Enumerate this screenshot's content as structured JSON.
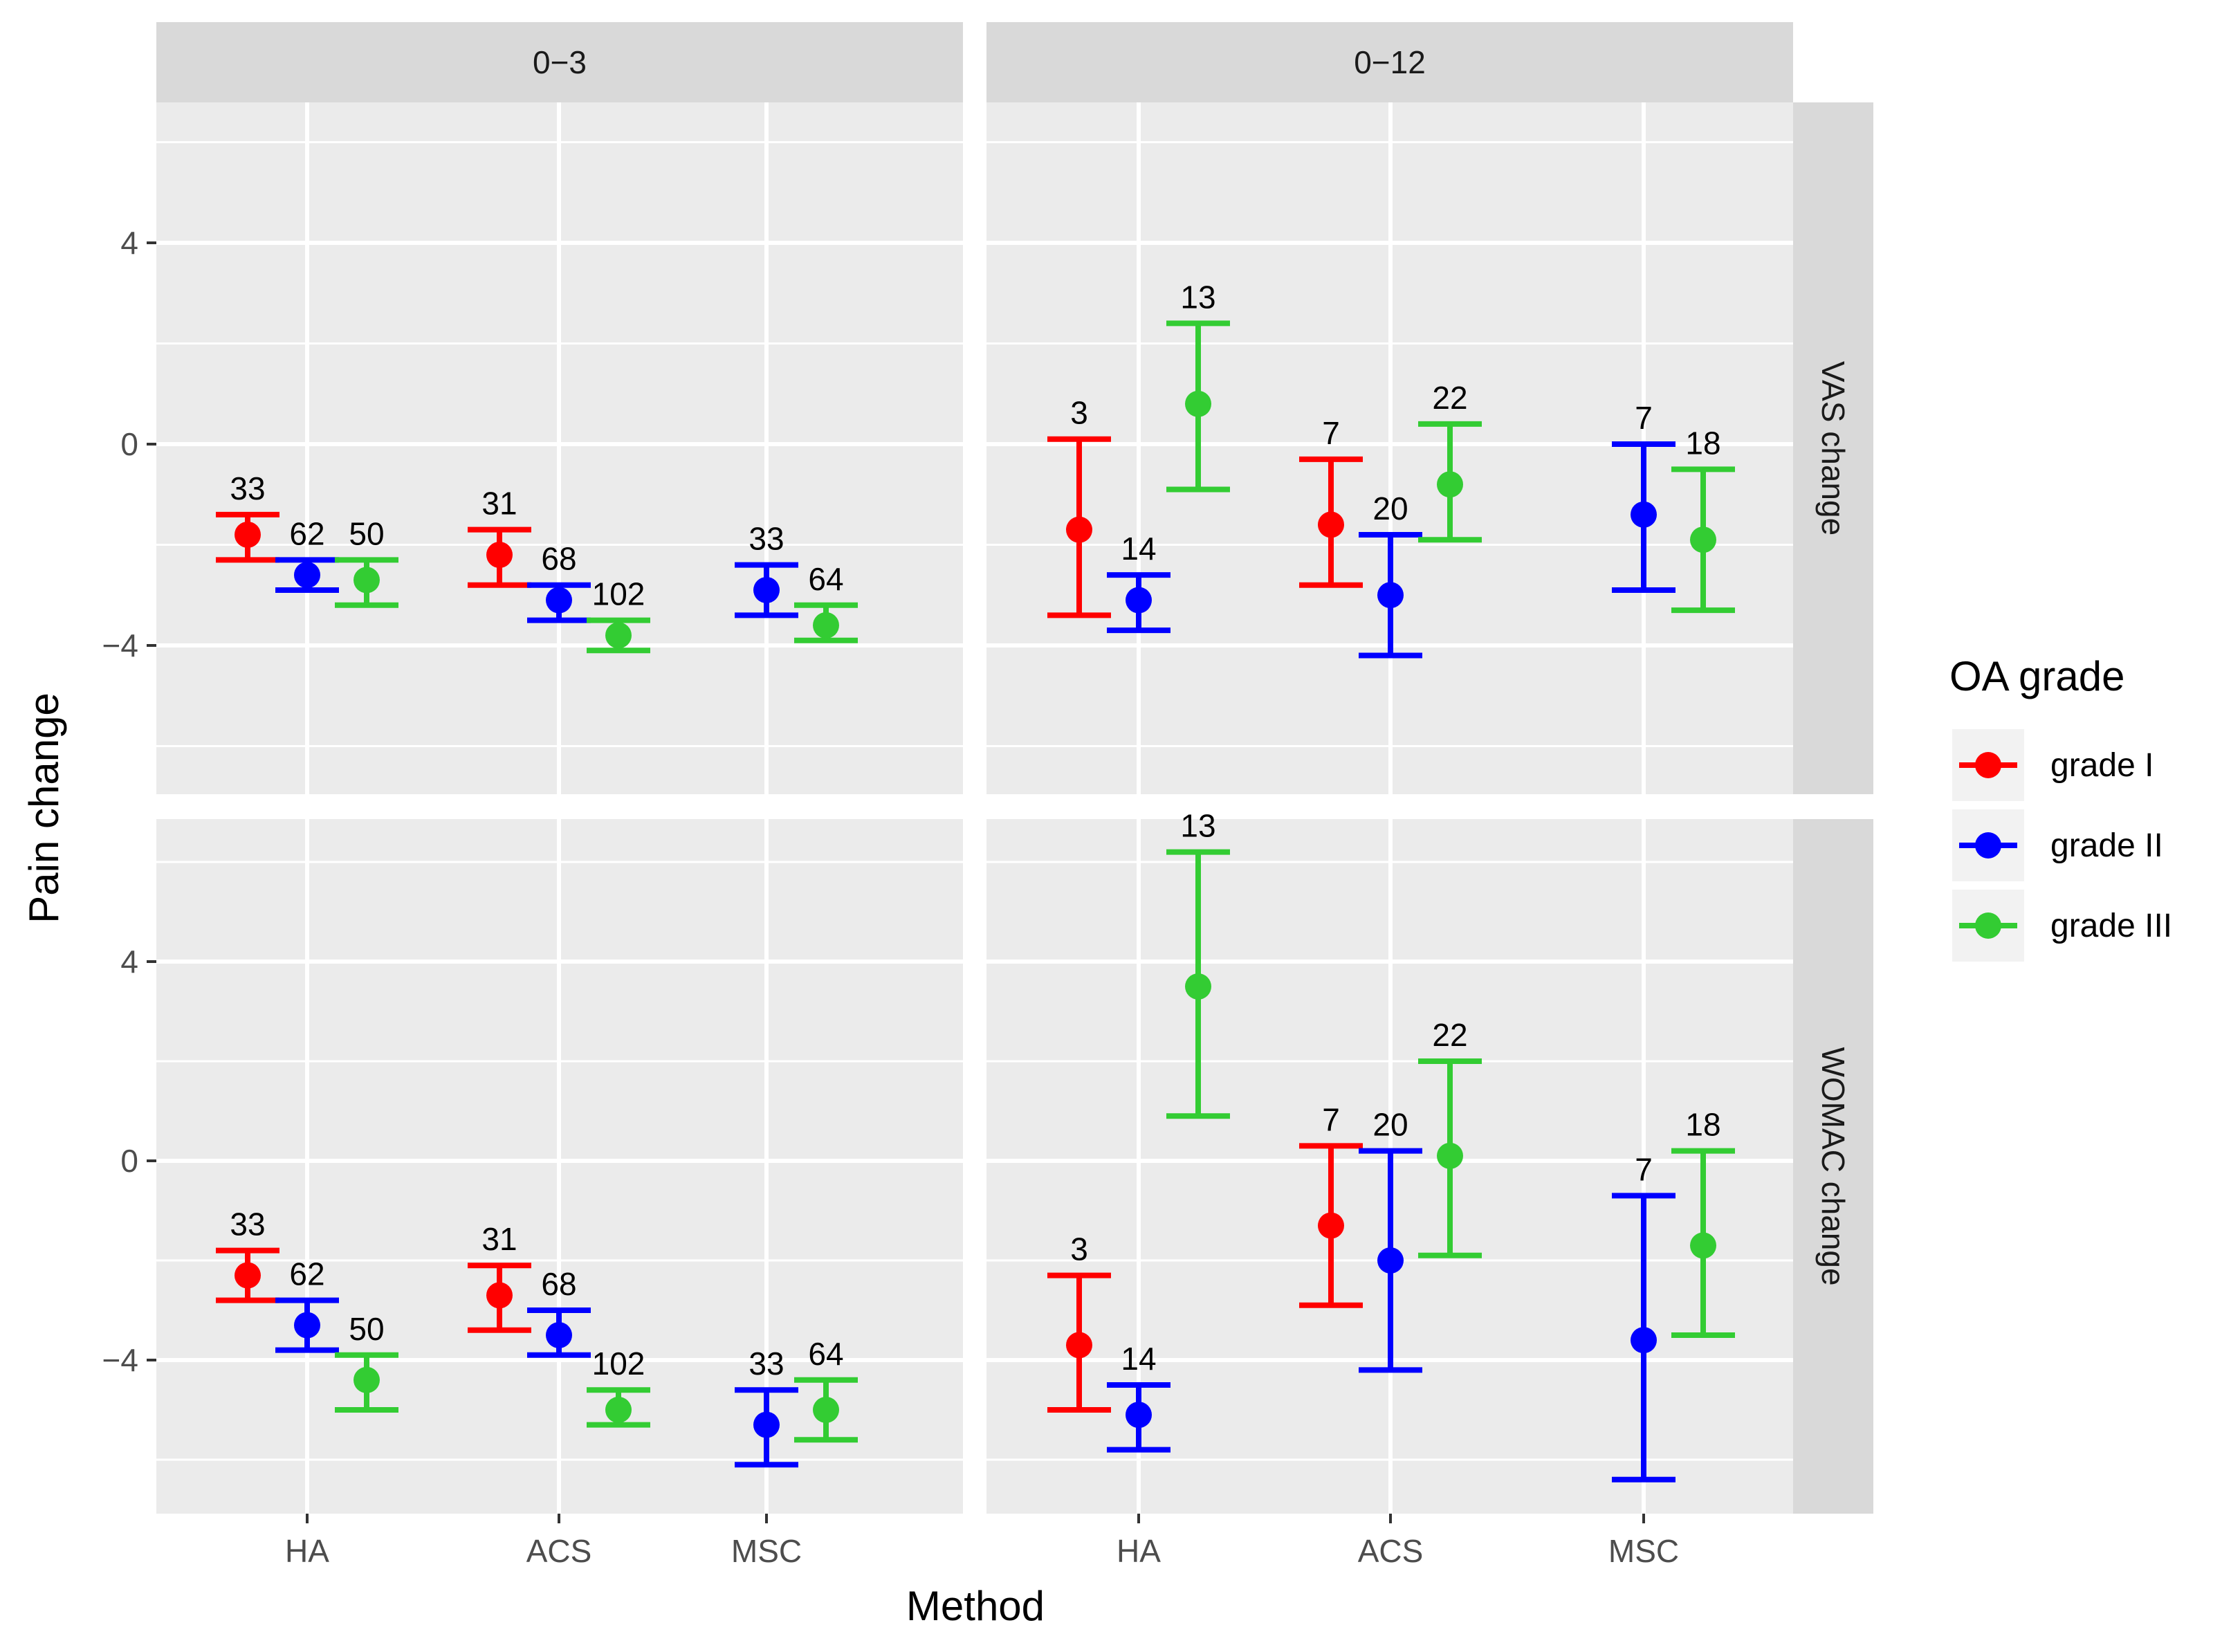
{
  "chart_data": {
    "type": "errorbar-faceted",
    "xlabel": "Method",
    "ylabel": "Pain change",
    "categories": [
      "HA",
      "ACS",
      "MSC"
    ],
    "column_facets": [
      "0−3",
      "0−12"
    ],
    "row_facets": [
      "VAS change",
      "WOMAC change"
    ],
    "y_ticks": [
      -4,
      0,
      4
    ],
    "y_tick_labels": [
      "−4",
      "0",
      "4"
    ],
    "ylim": [
      -7,
      7
    ],
    "grid": true,
    "legend": {
      "title": "OA grade",
      "position": "right",
      "items": [
        {
          "name": "grade I",
          "color": "#ff0000"
        },
        {
          "name": "grade II",
          "color": "#0000ff"
        },
        {
          "name": "grade III",
          "color": "#33cc33"
        }
      ]
    },
    "panels": [
      {
        "column": "0−3",
        "row": "VAS change",
        "series": [
          {
            "grade": "grade I",
            "points": [
              {
                "method": "HA",
                "mean": -1.8,
                "lower": -2.3,
                "upper": -1.4,
                "n": "33"
              },
              {
                "method": "ACS",
                "mean": -2.2,
                "lower": -2.8,
                "upper": -1.7,
                "n": "31"
              }
            ]
          },
          {
            "grade": "grade II",
            "points": [
              {
                "method": "HA",
                "mean": -2.6,
                "lower": -2.9,
                "upper": -2.3,
                "n": "62"
              },
              {
                "method": "ACS",
                "mean": -3.1,
                "lower": -3.5,
                "upper": -2.8,
                "n": "68"
              },
              {
                "method": "MSC",
                "mean": -2.9,
                "lower": -3.4,
                "upper": -2.4,
                "n": "33"
              }
            ]
          },
          {
            "grade": "grade III",
            "points": [
              {
                "method": "HA",
                "mean": -2.7,
                "lower": -3.2,
                "upper": -2.3,
                "n": "50"
              },
              {
                "method": "ACS",
                "mean": -3.8,
                "lower": -4.1,
                "upper": -3.5,
                "n": "102"
              },
              {
                "method": "MSC",
                "mean": -3.6,
                "lower": -3.9,
                "upper": -3.2,
                "n": "64"
              }
            ]
          }
        ]
      },
      {
        "column": "0−12",
        "row": "VAS change",
        "series": [
          {
            "grade": "grade I",
            "points": [
              {
                "method": "HA",
                "mean": -1.7,
                "lower": -3.4,
                "upper": 0.1,
                "n": "3"
              },
              {
                "method": "ACS",
                "mean": -1.6,
                "lower": -2.8,
                "upper": -0.3,
                "n": "7"
              }
            ]
          },
          {
            "grade": "grade II",
            "points": [
              {
                "method": "HA",
                "mean": -3.1,
                "lower": -3.7,
                "upper": -2.6,
                "n": "14"
              },
              {
                "method": "ACS",
                "mean": -3.0,
                "lower": -4.2,
                "upper": -1.8,
                "n": "20"
              },
              {
                "method": "MSC",
                "mean": -1.4,
                "lower": -2.9,
                "upper": 0.0,
                "n": "7"
              }
            ]
          },
          {
            "grade": "grade III",
            "points": [
              {
                "method": "HA",
                "mean": 0.8,
                "lower": -0.9,
                "upper": 2.4,
                "n": "13"
              },
              {
                "method": "ACS",
                "mean": -0.8,
                "lower": -1.9,
                "upper": 0.4,
                "n": "22"
              },
              {
                "method": "MSC",
                "mean": -1.9,
                "lower": -3.3,
                "upper": -0.5,
                "n": "18"
              }
            ]
          }
        ]
      },
      {
        "column": "0−3",
        "row": "WOMAC change",
        "series": [
          {
            "grade": "grade I",
            "points": [
              {
                "method": "HA",
                "mean": -2.3,
                "lower": -2.8,
                "upper": -1.8,
                "n": "33"
              },
              {
                "method": "ACS",
                "mean": -2.7,
                "lower": -3.4,
                "upper": -2.1,
                "n": "31"
              }
            ]
          },
          {
            "grade": "grade II",
            "points": [
              {
                "method": "HA",
                "mean": -3.3,
                "lower": -3.8,
                "upper": -2.8,
                "n": "62"
              },
              {
                "method": "ACS",
                "mean": -3.5,
                "lower": -3.9,
                "upper": -3.0,
                "n": "68"
              },
              {
                "method": "MSC",
                "mean": -5.3,
                "lower": -6.1,
                "upper": -4.6,
                "n": "33"
              }
            ]
          },
          {
            "grade": "grade III",
            "points": [
              {
                "method": "HA",
                "mean": -4.4,
                "lower": -5.0,
                "upper": -3.9,
                "n": "50"
              },
              {
                "method": "ACS",
                "mean": -5.0,
                "lower": -5.3,
                "upper": -4.6,
                "n": "102"
              },
              {
                "method": "MSC",
                "mean": -5.0,
                "lower": -5.6,
                "upper": -4.4,
                "n": "64"
              }
            ]
          }
        ]
      },
      {
        "column": "0−12",
        "row": "WOMAC change",
        "series": [
          {
            "grade": "grade I",
            "points": [
              {
                "method": "HA",
                "mean": -3.7,
                "lower": -5.0,
                "upper": -2.3,
                "n": "3"
              },
              {
                "method": "ACS",
                "mean": -1.3,
                "lower": -2.9,
                "upper": 0.3,
                "n": "7"
              }
            ]
          },
          {
            "grade": "grade II",
            "points": [
              {
                "method": "HA",
                "mean": -5.1,
                "lower": -5.8,
                "upper": -4.5,
                "n": "14"
              },
              {
                "method": "ACS",
                "mean": -2.0,
                "lower": -4.2,
                "upper": 0.2,
                "n": "20"
              },
              {
                "method": "MSC",
                "mean": -3.6,
                "lower": -6.4,
                "upper": -0.7,
                "n": "7"
              }
            ]
          },
          {
            "grade": "grade III",
            "points": [
              {
                "method": "HA",
                "mean": 3.5,
                "lower": 0.9,
                "upper": 6.2,
                "n": "13"
              },
              {
                "method": "ACS",
                "mean": 0.1,
                "lower": -1.9,
                "upper": 2.0,
                "n": "22"
              },
              {
                "method": "MSC",
                "mean": -1.7,
                "lower": -3.5,
                "upper": 0.2,
                "n": "18"
              }
            ]
          }
        ]
      }
    ]
  }
}
